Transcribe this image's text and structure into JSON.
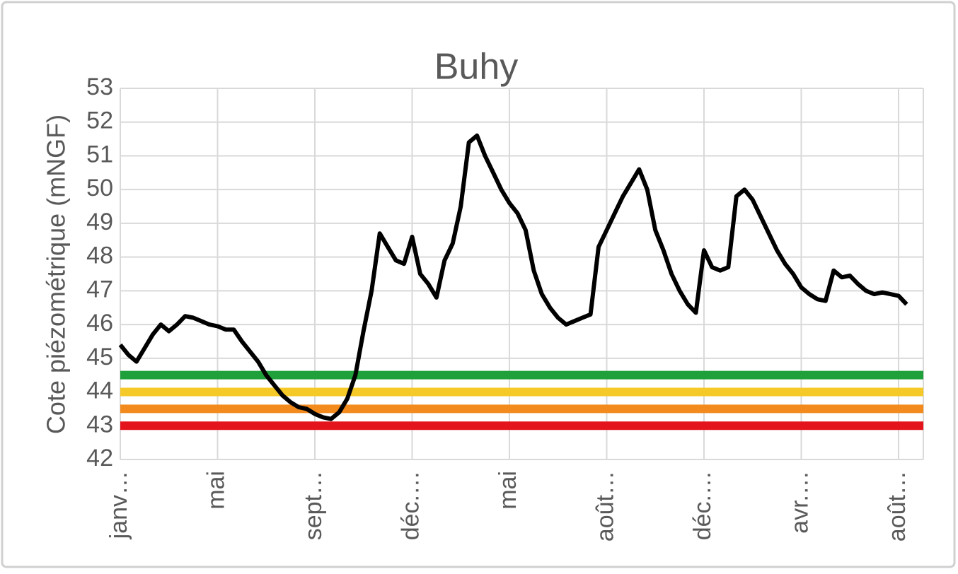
{
  "chart_data": {
    "type": "line",
    "title": "Buhy",
    "y_label": "Cote piézométrique (mNGF)",
    "categories": [
      "janv…",
      null,
      null,
      null,
      null,
      null,
      null,
      null,
      null,
      null,
      null,
      null,
      "mai",
      null,
      null,
      null,
      null,
      null,
      null,
      null,
      null,
      null,
      null,
      null,
      "sept…",
      null,
      null,
      null,
      null,
      null,
      null,
      null,
      null,
      null,
      null,
      null,
      "déc.…",
      null,
      null,
      null,
      null,
      null,
      null,
      null,
      null,
      null,
      null,
      null,
      "mai",
      null,
      null,
      null,
      null,
      null,
      null,
      null,
      null,
      null,
      null,
      null,
      "août…",
      null,
      null,
      null,
      null,
      null,
      null,
      null,
      null,
      null,
      null,
      null,
      "déc.…",
      null,
      null,
      null,
      null,
      null,
      null,
      null,
      null,
      null,
      null,
      null,
      "avr.…",
      null,
      null,
      null,
      null,
      null,
      null,
      null,
      null,
      null,
      null,
      null,
      "août…",
      null
    ],
    "series": [
      {
        "color": "#000000",
        "values": [
          45.4,
          45.1,
          44.9,
          45.3,
          45.7,
          46.0,
          45.8,
          46.0,
          46.25,
          46.2,
          46.1,
          46.0,
          45.95,
          45.85,
          45.85,
          45.5,
          45.2,
          44.9,
          44.5,
          44.2,
          43.9,
          43.7,
          43.55,
          43.5,
          43.35,
          43.25,
          43.2,
          43.4,
          43.8,
          44.5,
          45.8,
          47.0,
          48.7,
          48.3,
          47.9,
          47.8,
          48.6,
          47.5,
          47.2,
          46.8,
          47.9,
          48.4,
          49.5,
          51.4,
          51.6,
          51.0,
          50.5,
          50.0,
          49.6,
          49.3,
          48.8,
          47.6,
          46.9,
          46.5,
          46.2,
          46.0,
          46.1,
          46.2,
          46.3,
          48.3,
          48.8,
          49.3,
          49.8,
          50.2,
          50.6,
          50.0,
          48.8,
          48.2,
          47.5,
          47.0,
          46.6,
          46.35,
          48.2,
          47.7,
          47.6,
          47.7,
          49.8,
          50.0,
          49.7,
          49.2,
          48.7,
          48.2,
          47.8,
          47.5,
          47.1,
          46.9,
          46.75,
          46.7,
          47.6,
          47.4,
          47.45,
          47.2,
          47.0,
          46.9,
          46.95,
          46.9,
          46.85,
          46.6
        ]
      }
    ],
    "thresholds": [
      {
        "value": 44.5,
        "color": "#20a03a"
      },
      {
        "value": 44.0,
        "color": "#f5c928"
      },
      {
        "value": 43.5,
        "color": "#f28a1e"
      },
      {
        "value": 43.0,
        "color": "#e3141c"
      }
    ],
    "ylim": [
      42,
      53
    ],
    "yticks": [
      42,
      43,
      44,
      45,
      46,
      47,
      48,
      49,
      50,
      51,
      52,
      53
    ],
    "grid": true
  }
}
